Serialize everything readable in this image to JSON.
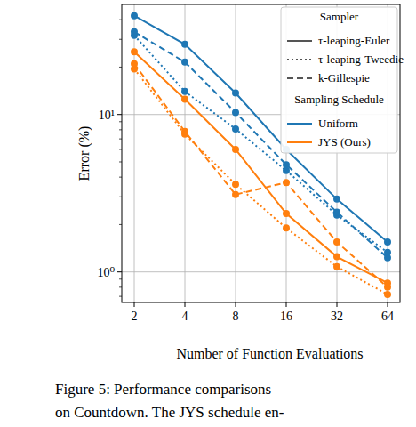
{
  "chart_data": {
    "type": "line",
    "x_label": "Number of Function Evaluations",
    "y_label": "Error (%)",
    "categories": [
      "2",
      "4",
      "8",
      "16",
      "32",
      "64"
    ],
    "log": "y",
    "ylim": [
      0.64,
      50
    ],
    "yticks": [
      {
        "value": 1,
        "label": "10⁰"
      },
      {
        "value": 10,
        "label": "10¹"
      }
    ],
    "grid": true,
    "legend": "upper right",
    "legend_groups": [
      {
        "title": "Sampler",
        "entries": [
          {
            "name": "τ-leaping-Euler",
            "line_style": "solid"
          },
          {
            "name": "τ-leaping-Tweedie",
            "line_style": "dotted"
          },
          {
            "name": "k-Gillespie",
            "line_style": "dashed"
          }
        ]
      },
      {
        "title": "Sampling Schedule",
        "entries": [
          {
            "name": "Uniform",
            "color": "#1f77b4"
          },
          {
            "name": "JYS (Ours)",
            "color": "#ff7f0e"
          }
        ]
      }
    ],
    "series": [
      {
        "sampler": "τ-leaping-Euler",
        "schedule": "Uniform",
        "color": "#1f77b4",
        "line_style": "solid",
        "marker": "circle",
        "values": [
          42.4,
          27.9,
          13.7,
          6.0,
          2.9,
          1.55
        ]
      },
      {
        "sampler": "τ-leaping-Tweedie",
        "schedule": "Uniform",
        "color": "#1f77b4",
        "line_style": "dotted",
        "marker": "circle",
        "values": [
          31.8,
          14.0,
          8.1,
          4.4,
          2.3,
          1.33
        ]
      },
      {
        "sampler": "k-Gillespie",
        "schedule": "Uniform",
        "color": "#1f77b4",
        "line_style": "dashed",
        "marker": "circle",
        "values": [
          33.5,
          21.5,
          10.3,
          4.8,
          2.4,
          1.23
        ]
      },
      {
        "sampler": "τ-leaping-Euler",
        "schedule": "JYS (Ours)",
        "color": "#ff7f0e",
        "line_style": "solid",
        "marker": "circle",
        "values": [
          25.0,
          12.5,
          6.0,
          2.35,
          1.25,
          0.85
        ]
      },
      {
        "sampler": "τ-leaping-Tweedie",
        "schedule": "JYS (Ours)",
        "color": "#ff7f0e",
        "line_style": "dotted",
        "marker": "circle",
        "values": [
          19.5,
          7.5,
          3.6,
          1.9,
          1.08,
          0.72
        ]
      },
      {
        "sampler": "k-Gillespie",
        "schedule": "JYS (Ours)",
        "color": "#ff7f0e",
        "line_style": "dashed",
        "marker": "circle",
        "values": [
          21.0,
          7.8,
          3.1,
          3.7,
          1.55,
          0.8
        ]
      }
    ],
    "caption": [
      "Figure 5:    Performance comparisons",
      "on Countdown. The JYS schedule en-"
    ]
  }
}
